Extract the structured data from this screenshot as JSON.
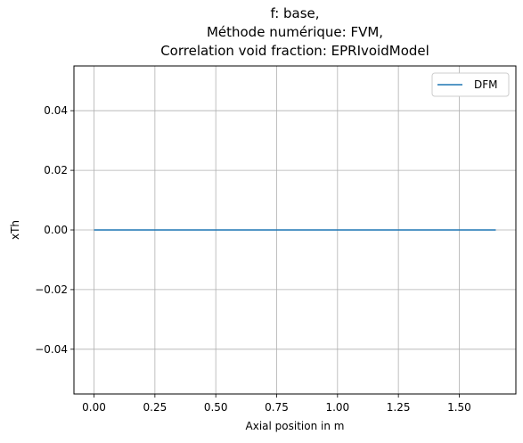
{
  "chart_data": {
    "type": "line",
    "title_lines": [
      "f: base,",
      "Méthode numérique: FVM,",
      "Correlation void fraction: EPRIvoidModel"
    ],
    "xlabel": "Axial position in m",
    "ylabel": "xTh",
    "xlim": [
      -0.0825,
      1.7325
    ],
    "ylim": [
      -0.055,
      0.055
    ],
    "x_ticks": [
      0.0,
      0.25,
      0.5,
      0.75,
      1.0,
      1.25,
      1.5
    ],
    "x_tick_labels": [
      "0.00",
      "0.25",
      "0.50",
      "0.75",
      "1.00",
      "1.25",
      "1.50"
    ],
    "y_ticks": [
      0.04,
      0.02,
      0.0,
      -0.02,
      -0.04
    ],
    "y_tick_labels": [
      "0.04",
      "0.02",
      "0.00",
      "−0.02",
      "−0.04"
    ],
    "grid": true,
    "legend_position": "top-right",
    "series": [
      {
        "name": "DFM",
        "color": "#1f77b4",
        "x": [
          0.0,
          1.65
        ],
        "y": [
          0.0,
          0.0
        ]
      }
    ]
  }
}
